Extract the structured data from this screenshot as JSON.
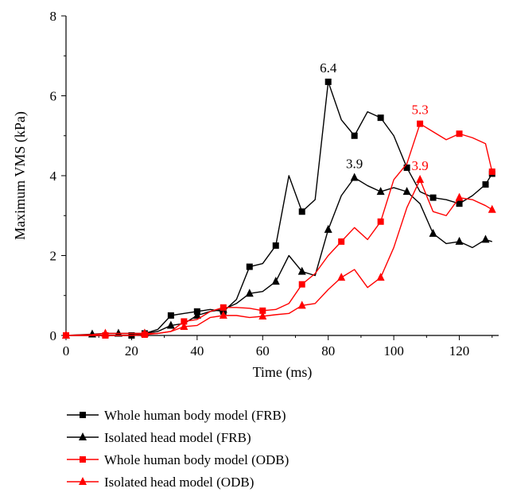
{
  "chart_data": {
    "type": "line",
    "title": "",
    "xlabel": "Time (ms)",
    "ylabel": "Maximum VMS (kPa)",
    "xlim": [
      0,
      132
    ],
    "ylim": [
      0,
      8
    ],
    "xticks": [
      "0",
      "20",
      "40",
      "60",
      "80",
      "100",
      "120"
    ],
    "yticks": [
      "0",
      "2",
      "4",
      "6",
      "8"
    ],
    "grid": false,
    "legend_position": "bottom",
    "series": [
      {
        "name": "Whole human body model (FRB)",
        "color": "#000000",
        "marker": "square",
        "x": [
          0,
          8,
          12,
          16,
          20,
          24,
          28,
          32,
          36,
          40,
          44,
          48,
          52,
          56,
          60,
          64,
          68,
          72,
          76,
          80,
          84,
          88,
          92,
          96,
          100,
          104,
          108,
          112,
          116,
          120,
          124,
          128,
          130
        ],
        "y": [
          0,
          0,
          0,
          0,
          0,
          0.05,
          0.15,
          0.5,
          0.55,
          0.6,
          0.65,
          0.6,
          0.9,
          1.72,
          1.8,
          2.25,
          4.0,
          3.1,
          3.4,
          6.35,
          5.4,
          5.0,
          5.6,
          5.45,
          5.0,
          4.2,
          3.6,
          3.45,
          3.4,
          3.3,
          3.5,
          3.78,
          4.05
        ],
        "marker_x": [
          0,
          12,
          20,
          24,
          32,
          40,
          48,
          56,
          64,
          72,
          80,
          88,
          96,
          104,
          112,
          120,
          128,
          130
        ]
      },
      {
        "name": "Isolated head model (FRB)",
        "color": "#000000",
        "marker": "triangle",
        "x": [
          0,
          8,
          12,
          16,
          20,
          24,
          28,
          32,
          36,
          40,
          44,
          48,
          52,
          56,
          60,
          64,
          68,
          72,
          76,
          80,
          84,
          88,
          92,
          96,
          100,
          104,
          108,
          112,
          116,
          120,
          124,
          128,
          130
        ],
        "y": [
          0,
          0.03,
          0.05,
          0.05,
          0.05,
          0.05,
          0.1,
          0.25,
          0.3,
          0.5,
          0.6,
          0.65,
          0.8,
          1.05,
          1.1,
          1.35,
          2.0,
          1.6,
          1.5,
          2.65,
          3.5,
          3.95,
          3.75,
          3.6,
          3.7,
          3.6,
          3.3,
          2.55,
          2.3,
          2.35,
          2.2,
          2.4,
          2.35
        ],
        "marker_x": [
          0,
          8,
          16,
          24,
          32,
          40,
          48,
          56,
          64,
          72,
          80,
          88,
          96,
          104,
          112,
          120,
          128
        ]
      },
      {
        "name": "Whole human body model (ODB)",
        "color": "#ff0000",
        "marker": "square",
        "x": [
          0,
          8,
          12,
          16,
          20,
          24,
          28,
          32,
          36,
          40,
          44,
          48,
          52,
          56,
          60,
          64,
          68,
          72,
          76,
          80,
          84,
          88,
          92,
          96,
          100,
          104,
          108,
          112,
          116,
          120,
          124,
          128,
          130
        ],
        "y": [
          0,
          0,
          0,
          0,
          0,
          0.02,
          0.05,
          0.1,
          0.35,
          0.4,
          0.6,
          0.7,
          0.7,
          0.68,
          0.62,
          0.65,
          0.8,
          1.28,
          1.55,
          2.0,
          2.35,
          2.7,
          2.4,
          2.85,
          3.9,
          4.3,
          5.3,
          5.1,
          4.9,
          5.05,
          4.95,
          4.8,
          4.1
        ],
        "marker_x": [
          0,
          12,
          24,
          36,
          48,
          60,
          72,
          84,
          96,
          108,
          120,
          130
        ]
      },
      {
        "name": "Isolated head model (ODB)",
        "color": "#ff0000",
        "marker": "triangle",
        "x": [
          0,
          8,
          12,
          16,
          20,
          24,
          28,
          32,
          36,
          40,
          44,
          48,
          52,
          56,
          60,
          64,
          68,
          72,
          76,
          80,
          84,
          88,
          92,
          96,
          100,
          104,
          108,
          112,
          116,
          120,
          124,
          128,
          130
        ],
        "y": [
          0,
          0.02,
          0.05,
          0.05,
          0.05,
          0.05,
          0.05,
          0.1,
          0.22,
          0.25,
          0.45,
          0.5,
          0.5,
          0.45,
          0.48,
          0.52,
          0.55,
          0.75,
          0.8,
          1.15,
          1.45,
          1.65,
          1.2,
          1.45,
          2.2,
          3.2,
          3.9,
          3.1,
          3.0,
          3.45,
          3.4,
          3.25,
          3.15
        ],
        "marker_x": [
          0,
          12,
          24,
          36,
          48,
          60,
          72,
          84,
          96,
          108,
          120,
          130
        ]
      }
    ],
    "annotations": [
      {
        "text": "6.4",
        "x": 80,
        "y": 6.35,
        "color": "#000000"
      },
      {
        "text": "3.9",
        "x": 88,
        "y": 3.95,
        "color": "#000000"
      },
      {
        "text": "5.3",
        "x": 108,
        "y": 5.3,
        "color": "#ff0000"
      },
      {
        "text": "3.9",
        "x": 108,
        "y": 3.9,
        "color": "#ff0000"
      }
    ]
  }
}
